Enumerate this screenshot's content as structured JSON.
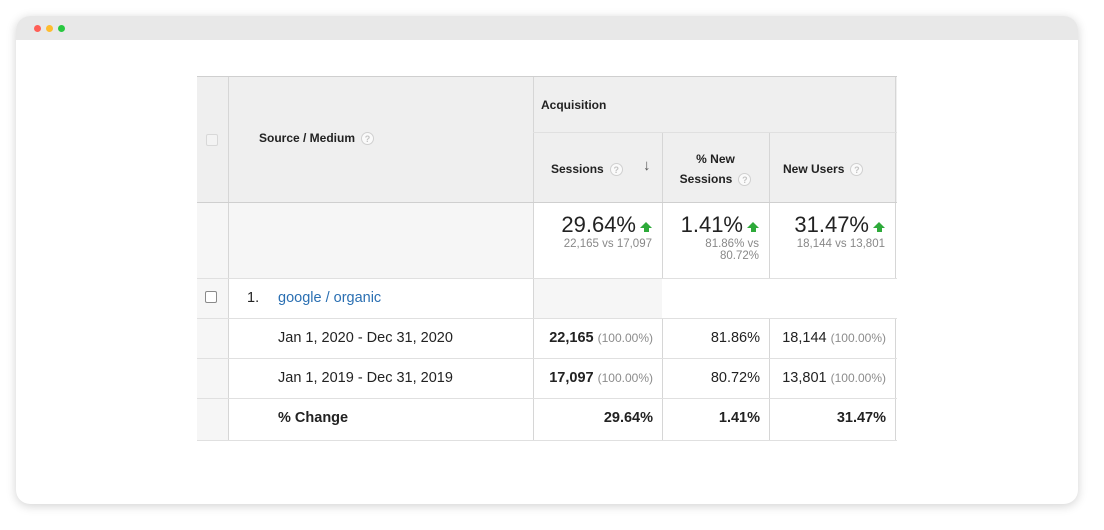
{
  "header": {
    "source_medium_label": "Source / Medium",
    "acquisition_label": "Acquisition",
    "columns": [
      {
        "line1": "Sessions",
        "line2": ""
      },
      {
        "line1": "% New",
        "line2": "Sessions"
      },
      {
        "line1": "New Users",
        "line2": ""
      }
    ]
  },
  "summary": [
    {
      "value": "29.64%",
      "sub1": "22,165 vs 17,097",
      "sub2": ""
    },
    {
      "value": "1.41%",
      "sub1": "81.86% vs",
      "sub2": "80.72%"
    },
    {
      "value": "31.47%",
      "sub1": "18,144 vs 13,801",
      "sub2": ""
    }
  ],
  "row": {
    "index": "1.",
    "source": "google / organic"
  },
  "periods": [
    {
      "label": "Jan 1, 2020 - Dec 31, 2020",
      "sessions": "22,165",
      "sessions_pct": "(100.00%)",
      "new_sessions": "81.86%",
      "new_users": "18,144",
      "new_users_pct": "(100.00%)"
    },
    {
      "label": "Jan 1, 2019 - Dec 31, 2019",
      "sessions": "17,097",
      "sessions_pct": "(100.00%)",
      "new_sessions": "80.72%",
      "new_users": "13,801",
      "new_users_pct": "(100.00%)"
    }
  ],
  "change": {
    "label": "% Change",
    "sessions": "29.64%",
    "new_sessions": "1.41%",
    "new_users": "31.47%"
  },
  "icons": {
    "help": "?",
    "sort": "↓"
  },
  "colors": {
    "up_arrow": "#2eaa3a",
    "link": "#2a6fb2"
  }
}
